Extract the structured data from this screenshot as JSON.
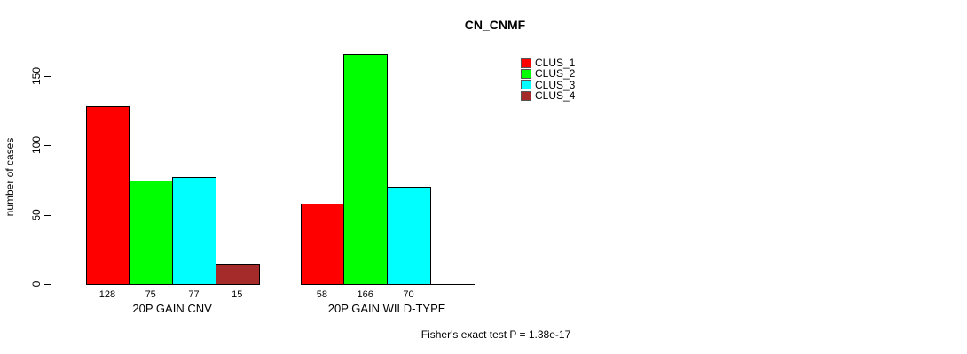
{
  "title": "CN_CNMF",
  "chart_data": {
    "type": "bar",
    "title": "CN_CNMF",
    "ylabel": "number of cases",
    "xlabel": "",
    "ylim": [
      0,
      150
    ],
    "yticks": [
      0,
      50,
      100,
      150
    ],
    "grid": false,
    "legend_position": "top-right",
    "categories": [
      "20P GAIN CNV",
      "20P GAIN WILD-TYPE"
    ],
    "series": [
      {
        "name": "CLUS_1",
        "color": "#FF0000",
        "values": [
          128,
          58
        ]
      },
      {
        "name": "CLUS_2",
        "color": "#00FF00",
        "values": [
          75,
          166
        ]
      },
      {
        "name": "CLUS_3",
        "color": "#00FFFF",
        "values": [
          77,
          70
        ]
      },
      {
        "name": "CLUS_4",
        "color": "#A52A2A",
        "values": [
          15,
          0
        ]
      }
    ],
    "bar_value_labels_shown": true,
    "annotation": "Fisher's exact test P = 1.38e-17"
  }
}
